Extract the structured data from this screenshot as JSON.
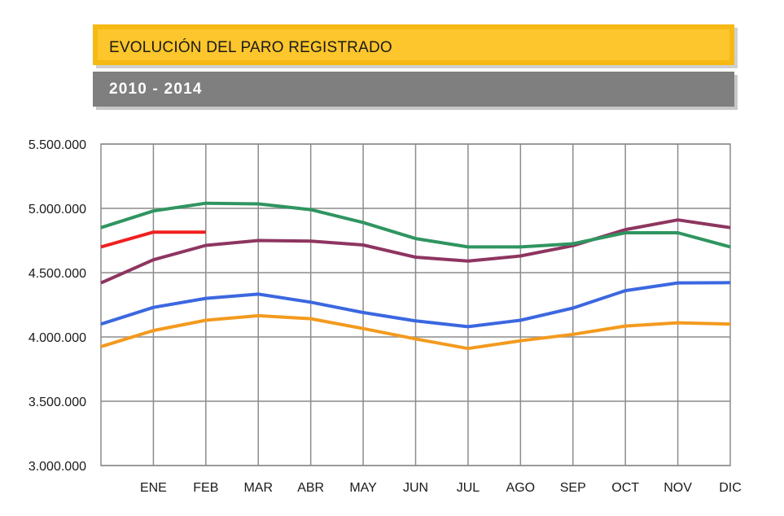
{
  "header": {
    "title": "EVOLUCIÓN DEL PARO REGISTRADO",
    "subtitle": "2010 - 2014"
  },
  "chart_data": {
    "type": "line",
    "title": "EVOLUCIÓN DEL PARO REGISTRADO",
    "subtitle": "2010 - 2014",
    "xlabel": "",
    "ylabel": "",
    "categories": [
      "",
      "ENE",
      "FEB",
      "MAR",
      "ABR",
      "MAY",
      "JUN",
      "JUL",
      "AGO",
      "SEP",
      "OCT",
      "NOV",
      "DIC"
    ],
    "ylim": [
      3000000,
      5500000
    ],
    "yticks": [
      3000000,
      3500000,
      4000000,
      4500000,
      5000000,
      5500000
    ],
    "ytick_labels": [
      "3.000.000",
      "3.500.000",
      "4.000.000",
      "4.500.000",
      "5.000.000",
      "5.500.000"
    ],
    "grid": true,
    "legend": "none",
    "series": [
      {
        "color": "#f39a1e",
        "values": [
          3925000,
          4050000,
          4130000,
          4165000,
          4142000,
          4065000,
          3985000,
          3910000,
          3970000,
          4020000,
          4085000,
          4110000,
          4100000
        ]
      },
      {
        "color": "#3b67e0",
        "values": [
          4100000,
          4230000,
          4300000,
          4333000,
          4270000,
          4190000,
          4125000,
          4080000,
          4130000,
          4225000,
          4360000,
          4420000,
          4422000
        ]
      },
      {
        "color": "#8e3560",
        "values": [
          4420000,
          4600000,
          4712000,
          4750000,
          4745000,
          4715000,
          4620000,
          4590000,
          4630000,
          4710000,
          4835000,
          4910000,
          4850000
        ]
      },
      {
        "color": "#2f9560",
        "values": [
          4850000,
          4980000,
          5040000,
          5035000,
          4990000,
          4890000,
          4765000,
          4700000,
          4700000,
          4725000,
          4810000,
          4810000,
          4700000
        ]
      },
      {
        "color": "#ef2020",
        "values": [
          4700000,
          4815000,
          4815000,
          null,
          null,
          null,
          null,
          null,
          null,
          null,
          null,
          null,
          null
        ]
      }
    ]
  }
}
